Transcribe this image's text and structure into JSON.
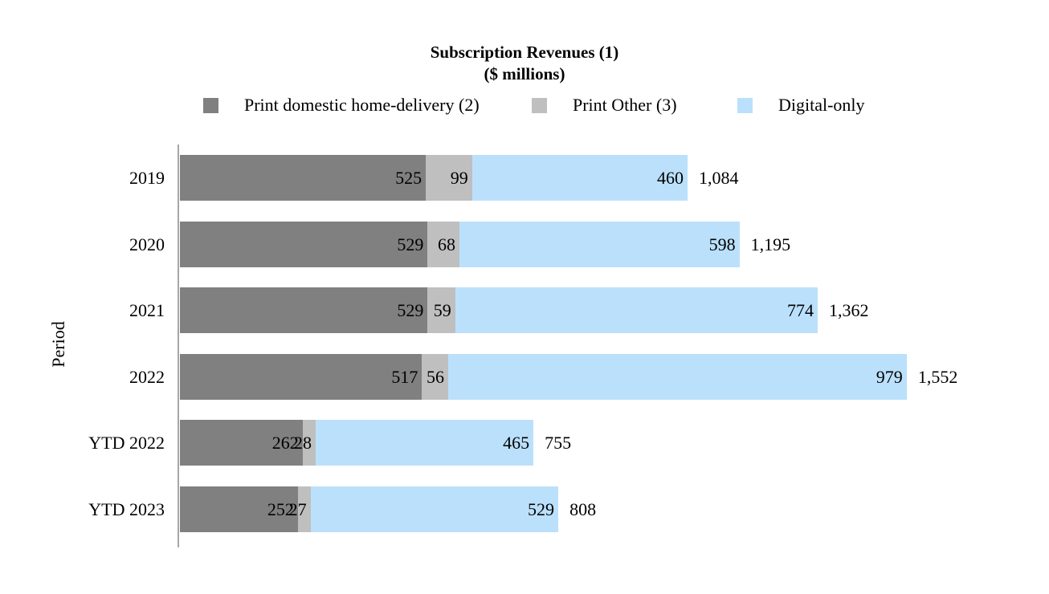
{
  "title": {
    "line1": "Subscription Revenues (1)",
    "line2": "($ millions)"
  },
  "y_axis_title": "Period",
  "legend": {
    "items": [
      {
        "label": "Print domestic home-delivery (2)",
        "color": "#808080"
      },
      {
        "label": "Print Other (3)",
        "color": "#bfbfbf"
      },
      {
        "label": "Digital-only",
        "color": "#bbe0fb"
      }
    ]
  },
  "chart_data": {
    "type": "bar",
    "orientation": "horizontal",
    "stacked": true,
    "title": "Subscription Revenues (1)",
    "subtitle": "($ millions)",
    "xlabel": "",
    "ylabel": "Period",
    "grid": false,
    "legend_position": "top",
    "axis_color": "#a6a6a6",
    "categories": [
      "2019",
      "2020",
      "2021",
      "2022",
      "YTD 2022",
      "YTD 2023"
    ],
    "series": [
      {
        "name": "Print domestic home-delivery (2)",
        "color": "#808080",
        "values": [
          525,
          529,
          529,
          517,
          262,
          252
        ]
      },
      {
        "name": "Print Other (3)",
        "color": "#bfbfbf",
        "values": [
          99,
          68,
          59,
          56,
          28,
          27
        ]
      },
      {
        "name": "Digital-only",
        "color": "#bbe0fb",
        "values": [
          460,
          598,
          774,
          979,
          465,
          529
        ]
      }
    ],
    "totals": [
      1084,
      1195,
      1362,
      1552,
      755,
      808
    ],
    "total_labels": [
      "1,084",
      "1,195",
      "1,362",
      "1,552",
      "755",
      "808"
    ],
    "value_axis_max": 1552
  }
}
